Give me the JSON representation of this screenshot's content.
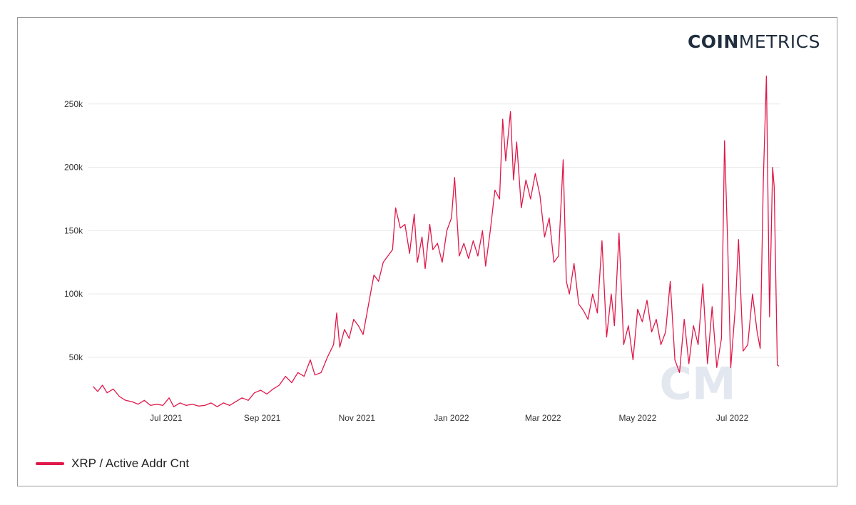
{
  "brand": {
    "strong": "COIN",
    "light": "METRICS"
  },
  "colors": {
    "series": "#e0184a",
    "grid": "#e9e9e9",
    "watermark": "#e3e7ef"
  },
  "legend": {
    "label": "XRP / Active Addr Cnt"
  },
  "watermark": {
    "text": "CM"
  },
  "chart_data": {
    "type": "line",
    "title": "",
    "xlabel": "",
    "ylabel": "",
    "x_range": [
      "2021-05-12",
      "2022-08-01"
    ],
    "ylim": [
      10000,
      260000
    ],
    "y_ticks": [
      {
        "value": 50000,
        "label": "50k"
      },
      {
        "value": 100000,
        "label": "100k"
      },
      {
        "value": 150000,
        "label": "150k"
      },
      {
        "value": 200000,
        "label": "200k"
      },
      {
        "value": 250000,
        "label": "250k"
      }
    ],
    "x_ticks": [
      {
        "date": "2021-07-01",
        "label": "Jul 2021"
      },
      {
        "date": "2021-09-01",
        "label": "Sep 2021"
      },
      {
        "date": "2021-11-01",
        "label": "Nov 2021"
      },
      {
        "date": "2022-01-01",
        "label": "Jan 2022"
      },
      {
        "date": "2022-03-01",
        "label": "Mar 2022"
      },
      {
        "date": "2022-05-01",
        "label": "May 2022"
      },
      {
        "date": "2022-07-01",
        "label": "Jul 2022"
      }
    ],
    "grid": true,
    "legend_position": "bottom-left",
    "series": [
      {
        "name": "XRP / Active Addr Cnt",
        "points": [
          [
            "2021-05-15",
            27000
          ],
          [
            "2021-05-18",
            23000
          ],
          [
            "2021-05-21",
            28000
          ],
          [
            "2021-05-24",
            22000
          ],
          [
            "2021-05-28",
            25000
          ],
          [
            "2021-06-01",
            19000
          ],
          [
            "2021-06-05",
            16000
          ],
          [
            "2021-06-09",
            15000
          ],
          [
            "2021-06-13",
            13000
          ],
          [
            "2021-06-17",
            16000
          ],
          [
            "2021-06-21",
            12000
          ],
          [
            "2021-06-25",
            13000
          ],
          [
            "2021-06-29",
            12000
          ],
          [
            "2021-07-03",
            18000
          ],
          [
            "2021-07-06",
            11000
          ],
          [
            "2021-07-10",
            14000
          ],
          [
            "2021-07-14",
            12000
          ],
          [
            "2021-07-18",
            13000
          ],
          [
            "2021-07-22",
            11500
          ],
          [
            "2021-07-26",
            12000
          ],
          [
            "2021-07-30",
            14000
          ],
          [
            "2021-08-03",
            11000
          ],
          [
            "2021-08-07",
            14000
          ],
          [
            "2021-08-11",
            12000
          ],
          [
            "2021-08-15",
            15000
          ],
          [
            "2021-08-19",
            18000
          ],
          [
            "2021-08-23",
            16000
          ],
          [
            "2021-08-27",
            22000
          ],
          [
            "2021-08-31",
            24000
          ],
          [
            "2021-09-04",
            21000
          ],
          [
            "2021-09-08",
            25000
          ],
          [
            "2021-09-12",
            28000
          ],
          [
            "2021-09-16",
            35000
          ],
          [
            "2021-09-20",
            30000
          ],
          [
            "2021-09-24",
            38000
          ],
          [
            "2021-09-28",
            35000
          ],
          [
            "2021-10-02",
            48000
          ],
          [
            "2021-10-05",
            36000
          ],
          [
            "2021-10-09",
            38000
          ],
          [
            "2021-10-13",
            50000
          ],
          [
            "2021-10-17",
            60000
          ],
          [
            "2021-10-19",
            85000
          ],
          [
            "2021-10-21",
            58000
          ],
          [
            "2021-10-24",
            72000
          ],
          [
            "2021-10-27",
            65000
          ],
          [
            "2021-10-30",
            80000
          ],
          [
            "2021-11-02",
            75000
          ],
          [
            "2021-11-05",
            68000
          ],
          [
            "2021-11-09",
            95000
          ],
          [
            "2021-11-12",
            115000
          ],
          [
            "2021-11-15",
            110000
          ],
          [
            "2021-11-18",
            125000
          ],
          [
            "2021-11-21",
            130000
          ],
          [
            "2021-11-24",
            135000
          ],
          [
            "2021-11-26",
            168000
          ],
          [
            "2021-11-29",
            152000
          ],
          [
            "2021-12-02",
            155000
          ],
          [
            "2021-12-05",
            132000
          ],
          [
            "2021-12-08",
            163000
          ],
          [
            "2021-12-10",
            125000
          ],
          [
            "2021-12-13",
            145000
          ],
          [
            "2021-12-15",
            120000
          ],
          [
            "2021-12-18",
            155000
          ],
          [
            "2021-12-20",
            135000
          ],
          [
            "2021-12-23",
            140000
          ],
          [
            "2021-12-26",
            125000
          ],
          [
            "2021-12-29",
            150000
          ],
          [
            "2022-01-01",
            160000
          ],
          [
            "2022-01-03",
            192000
          ],
          [
            "2022-01-06",
            130000
          ],
          [
            "2022-01-09",
            140000
          ],
          [
            "2022-01-12",
            128000
          ],
          [
            "2022-01-15",
            142000
          ],
          [
            "2022-01-18",
            130000
          ],
          [
            "2022-01-21",
            150000
          ],
          [
            "2022-01-23",
            122000
          ],
          [
            "2022-01-26",
            150000
          ],
          [
            "2022-01-29",
            182000
          ],
          [
            "2022-02-01",
            175000
          ],
          [
            "2022-02-03",
            238000
          ],
          [
            "2022-02-05",
            205000
          ],
          [
            "2022-02-08",
            244000
          ],
          [
            "2022-02-10",
            190000
          ],
          [
            "2022-02-12",
            220000
          ],
          [
            "2022-02-15",
            168000
          ],
          [
            "2022-02-18",
            190000
          ],
          [
            "2022-02-21",
            175000
          ],
          [
            "2022-02-24",
            195000
          ],
          [
            "2022-02-27",
            178000
          ],
          [
            "2022-03-02",
            145000
          ],
          [
            "2022-03-05",
            160000
          ],
          [
            "2022-03-08",
            125000
          ],
          [
            "2022-03-11",
            130000
          ],
          [
            "2022-03-14",
            206000
          ],
          [
            "2022-03-16",
            110000
          ],
          [
            "2022-03-18",
            100000
          ],
          [
            "2022-03-21",
            124000
          ],
          [
            "2022-03-24",
            92000
          ],
          [
            "2022-03-27",
            87000
          ],
          [
            "2022-03-30",
            80000
          ],
          [
            "2022-04-02",
            100000
          ],
          [
            "2022-04-05",
            85000
          ],
          [
            "2022-04-08",
            142000
          ],
          [
            "2022-04-11",
            66000
          ],
          [
            "2022-04-14",
            100000
          ],
          [
            "2022-04-16",
            75000
          ],
          [
            "2022-04-19",
            148000
          ],
          [
            "2022-04-22",
            60000
          ],
          [
            "2022-04-25",
            75000
          ],
          [
            "2022-04-28",
            48000
          ],
          [
            "2022-05-01",
            88000
          ],
          [
            "2022-05-04",
            78000
          ],
          [
            "2022-05-07",
            95000
          ],
          [
            "2022-05-10",
            70000
          ],
          [
            "2022-05-13",
            80000
          ],
          [
            "2022-05-16",
            60000
          ],
          [
            "2022-05-19",
            70000
          ],
          [
            "2022-05-22",
            110000
          ],
          [
            "2022-05-25",
            48000
          ],
          [
            "2022-05-28",
            38000
          ],
          [
            "2022-05-31",
            80000
          ],
          [
            "2022-06-03",
            45000
          ],
          [
            "2022-06-06",
            75000
          ],
          [
            "2022-06-09",
            60000
          ],
          [
            "2022-06-12",
            108000
          ],
          [
            "2022-06-15",
            45000
          ],
          [
            "2022-06-18",
            90000
          ],
          [
            "2022-06-21",
            42000
          ],
          [
            "2022-06-24",
            65000
          ],
          [
            "2022-06-26",
            221000
          ],
          [
            "2022-06-28",
            140000
          ],
          [
            "2022-06-30",
            42000
          ],
          [
            "2022-07-03",
            90000
          ],
          [
            "2022-07-05",
            143000
          ],
          [
            "2022-07-08",
            55000
          ],
          [
            "2022-07-11",
            60000
          ],
          [
            "2022-07-14",
            100000
          ],
          [
            "2022-07-17",
            70000
          ],
          [
            "2022-07-19",
            57000
          ],
          [
            "2022-07-21",
            190000
          ],
          [
            "2022-07-23",
            272000
          ],
          [
            "2022-07-25",
            82000
          ],
          [
            "2022-07-27",
            200000
          ],
          [
            "2022-07-28",
            185000
          ],
          [
            "2022-07-30",
            44000
          ],
          [
            "2022-07-31",
            43000
          ]
        ]
      }
    ]
  }
}
